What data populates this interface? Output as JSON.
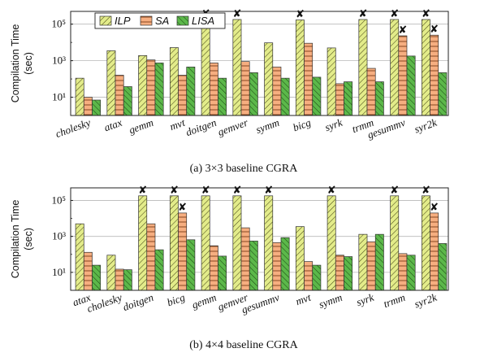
{
  "legend": [
    "ILP",
    "SA",
    "LISA"
  ],
  "colors": {
    "ILP": "#e3ec8a",
    "SA": "#f6ae80",
    "LISA": "#5cb84a",
    "grid": "#b8b8b8",
    "axis": "#222222"
  },
  "timeout_marker": "✘",
  "chart_data": [
    {
      "type": "bar",
      "title": "",
      "caption": "(a) 3×3 baseline CGRA",
      "xlabel": "",
      "ylabel": "Compilation Time (sec)",
      "ylabel_lines": [
        "Compilation Time",
        "(sec)"
      ],
      "yscale": "log",
      "ylim": [
        1,
        500000
      ],
      "yticks": [
        10,
        1000,
        100000
      ],
      "ytick_labels": [
        "10¹",
        "10³",
        "10⁵"
      ],
      "grid": true,
      "legend_position": "top-left",
      "categories": [
        "cholesky",
        "atax",
        "gemm",
        "mvt",
        "doitgen",
        "gemver",
        "symm",
        "bicg",
        "syrk",
        "trmm",
        "gesummv",
        "syr2k"
      ],
      "series": [
        {
          "name": "ILP",
          "values": [
            110,
            3500,
            1900,
            5200,
            180000,
            180000,
            9500,
            170000,
            5000,
            180000,
            180000,
            180000
          ]
        },
        {
          "name": "SA",
          "values": [
            10,
            160,
            1100,
            160,
            750,
            900,
            450,
            9000,
            55,
            380,
            23000,
            25000
          ]
        },
        {
          "name": "LISA",
          "values": [
            7,
            38,
            750,
            450,
            110,
            220,
            110,
            125,
            70,
            70,
            1800,
            220
          ]
        }
      ],
      "timeouts": [
        {
          "category": "doitgen",
          "series": "ILP"
        },
        {
          "category": "gemver",
          "series": "ILP"
        },
        {
          "category": "bicg",
          "series": "ILP"
        },
        {
          "category": "trmm",
          "series": "ILP"
        },
        {
          "category": "gesummv",
          "series": "ILP"
        },
        {
          "category": "gesummv",
          "series": "SA"
        },
        {
          "category": "syr2k",
          "series": "ILP"
        },
        {
          "category": "syr2k",
          "series": "SA"
        }
      ]
    },
    {
      "type": "bar",
      "title": "",
      "caption": "(b) 4×4 baseline CGRA",
      "xlabel": "",
      "ylabel": "Compilation Time (sec)",
      "ylabel_lines": [
        "Compilation Time",
        "(sec)"
      ],
      "yscale": "log",
      "ylim": [
        1,
        500000
      ],
      "yticks": [
        10,
        1000,
        100000
      ],
      "ytick_labels": [
        "10¹",
        "10³",
        "10⁵"
      ],
      "grid": true,
      "legend_position": "none",
      "categories": [
        "atax",
        "cholesky",
        "doitgen",
        "bicg",
        "gemm",
        "gemver",
        "gesummv",
        "mvt",
        "symm",
        "syrk",
        "trmm",
        "syr2k"
      ],
      "series": [
        {
          "name": "ILP",
          "values": [
            5000,
            90,
            180000,
            180000,
            180000,
            180000,
            180000,
            3500,
            180000,
            1300,
            180000,
            180000
          ]
        },
        {
          "name": "SA",
          "values": [
            130,
            15,
            5000,
            20000,
            300,
            3000,
            450,
            40,
            90,
            500,
            110,
            20000
          ]
        },
        {
          "name": "LISA",
          "values": [
            25,
            14,
            180,
            650,
            80,
            550,
            850,
            25,
            75,
            1300,
            90,
            400
          ]
        }
      ],
      "timeouts": [
        {
          "category": "doitgen",
          "series": "ILP"
        },
        {
          "category": "bicg",
          "series": "ILP"
        },
        {
          "category": "bicg",
          "series": "SA"
        },
        {
          "category": "gemm",
          "series": "ILP"
        },
        {
          "category": "gemver",
          "series": "ILP"
        },
        {
          "category": "gesummv",
          "series": "ILP"
        },
        {
          "category": "symm",
          "series": "ILP"
        },
        {
          "category": "trmm",
          "series": "ILP"
        },
        {
          "category": "syr2k",
          "series": "ILP"
        },
        {
          "category": "syr2k",
          "series": "SA"
        }
      ]
    }
  ]
}
